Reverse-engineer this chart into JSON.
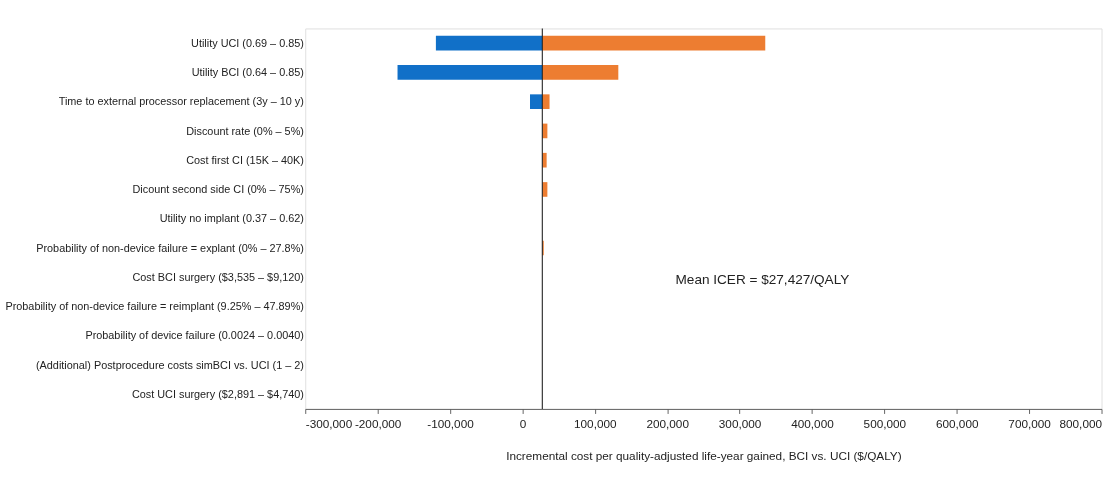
{
  "chart_data": {
    "type": "bar",
    "orientation": "horizontal",
    "xlabel": "Incremental cost per quality-adjusted life-year gained, BCI vs. UCI ($/QALY)",
    "categories": [
      "Utility UCI (0.69 – 0.85)",
      "Utility BCI  (0.64 – 0.85)",
      "Time to external processor replacement (3y – 10 y)",
      "Discount rate (0% – 5%)",
      "Cost first CI (15K –  40K)",
      "Dicount second side CI (0% – 75%)",
      "Utility no implant (0.37 – 0.62)",
      "Probability of non-device failure = explant (0% – 27.8%)",
      "Cost BCI surgery ($3,535 – $9,120)",
      "Probability of non-device failure = reimplant (9.25% – 47.89%)",
      "Probability of device failure (0.0024 – 0.0040)",
      "(Additional) Postprocedure costs simBCI vs. UCI (1 – 2)",
      "Cost UCI surgery ($2,891 – $4,740)"
    ],
    "series": [
      {
        "color": "#1170c8",
        "base": [
          27427,
          27427,
          27427,
          null,
          null,
          null,
          null,
          null,
          null,
          null,
          null,
          null,
          null
        ],
        "values": [
          -147000,
          -200000,
          -17000,
          null,
          null,
          null,
          null,
          null,
          null,
          null,
          null,
          null,
          null
        ]
      },
      {
        "color": "#ed7d31",
        "base": [
          27427,
          27427,
          27427,
          27427,
          27427,
          27427,
          null,
          27427,
          null,
          null,
          null,
          null,
          null
        ],
        "values": [
          308000,
          105000,
          10000,
          7000,
          6000,
          7000,
          null,
          2000,
          null,
          null,
          null,
          null,
          null
        ]
      }
    ],
    "xlim": [
      -300000,
      800000
    ],
    "xticks": [
      {
        "value": -300000,
        "label": "-300,000"
      },
      {
        "value": -200000,
        "label": "-200,000"
      },
      {
        "value": -100000,
        "label": "-100,000"
      },
      0,
      {
        "value": 100000,
        "label": "100,000"
      },
      {
        "value": 200000,
        "label": "200,000"
      },
      {
        "value": 300000,
        "label": "300,000"
      },
      {
        "value": 400000,
        "label": "400,000"
      },
      {
        "value": 500000,
        "label": "500,000"
      },
      {
        "value": 600000,
        "label": "600,000"
      },
      {
        "value": 700000,
        "label": "700,000"
      },
      {
        "value": 800000,
        "label": "800,000"
      }
    ],
    "ref_lines": [
      {
        "axis": "x",
        "value": 27427,
        "color": "#222222"
      }
    ],
    "annotations": [
      "Mean ICER = $27,427/QALY"
    ],
    "grid": false
  }
}
